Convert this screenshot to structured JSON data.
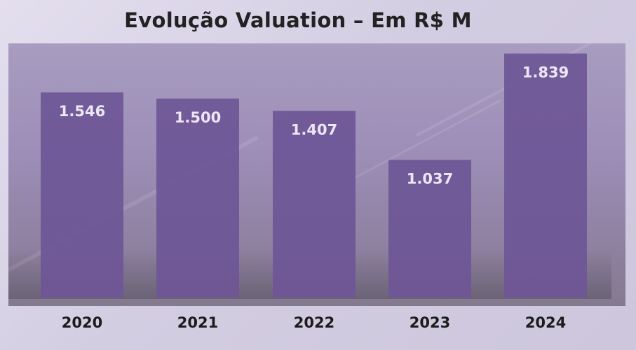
{
  "chart_data": {
    "type": "bar",
    "title": "Evolução Valuation – Em R$ M",
    "categories": [
      "2020",
      "2021",
      "2022",
      "2023",
      "2024"
    ],
    "values": [
      1546,
      1500,
      1407,
      1037,
      1839
    ],
    "value_labels": [
      "1.546",
      "1.500",
      "1.407",
      "1.037",
      "1.839"
    ],
    "xlabel": "",
    "ylabel": "",
    "ylim": [
      0,
      2000
    ],
    "grid": false,
    "legend": "none",
    "bar_color": "#6e5696"
  }
}
